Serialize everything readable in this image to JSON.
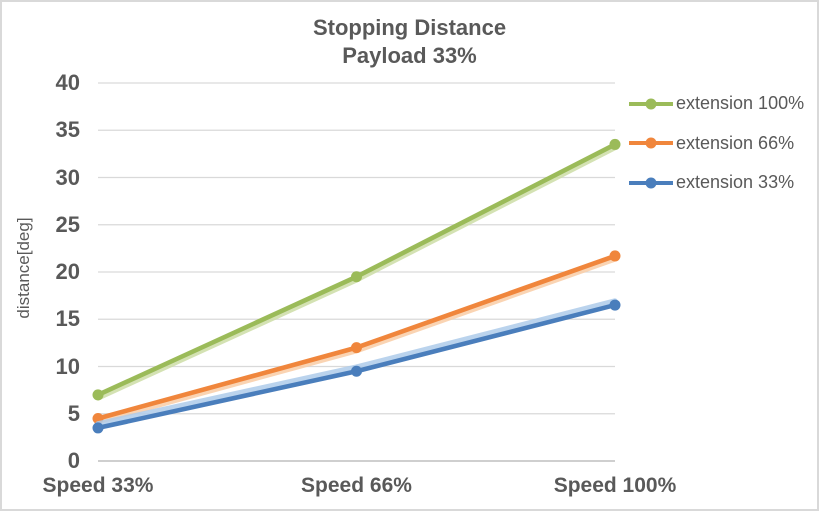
{
  "title": {
    "line1": "Stopping Distance",
    "line2": "Payload 33%"
  },
  "axes": {
    "y_title": "distance[deg]"
  },
  "chart_data": {
    "type": "line",
    "title": "Stopping Distance Payload 33%",
    "categories": [
      "Speed 33%",
      "Speed 66%",
      "Speed 100%"
    ],
    "series": [
      {
        "name": "extension 100%",
        "color": "#9BBB59",
        "glow_color": "#CDDDA6",
        "values": [
          7,
          19.5,
          33.5
        ]
      },
      {
        "name": "extension 66%",
        "color": "#F0863C",
        "glow_color": "#F9CDA6",
        "values": [
          4.5,
          12,
          21.7
        ]
      },
      {
        "name": "extension 33%",
        "color": "#4A7EBC",
        "glow_color": "#AECBEA",
        "values": [
          3.5,
          9.5,
          16.5
        ]
      }
    ],
    "xlabel": "",
    "ylabel": "distance[deg]",
    "ylim": [
      0,
      40
    ],
    "yticks": [
      0,
      5,
      10,
      15,
      20,
      25,
      30,
      35,
      40
    ],
    "grid": true,
    "legend_position": "right",
    "marker": "circle"
  },
  "colors": {
    "grid": "#D9D9D9",
    "axis_line": "#BFBFBF",
    "text": "#595959",
    "border": "#D9D9D9",
    "background": "#FFFFFF"
  }
}
